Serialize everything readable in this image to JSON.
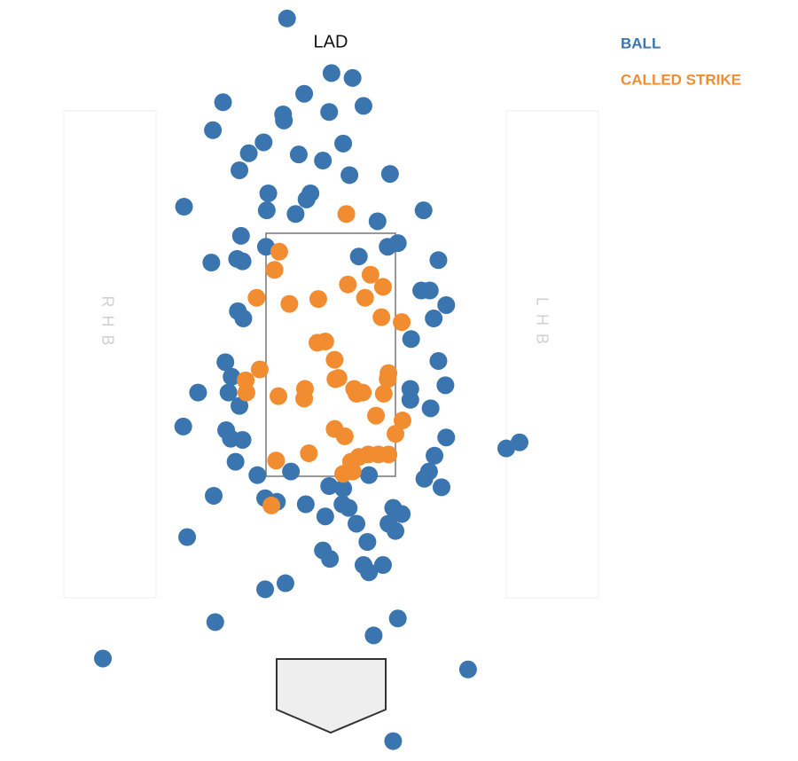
{
  "chart_data": {
    "type": "scatter",
    "title": "LAD",
    "legend": "top-right",
    "annotations": [
      "RHB",
      "LHB"
    ],
    "xlim": [
      -4,
      4
    ],
    "ylim": [
      -0.8,
      5.4
    ],
    "series": [
      {
        "name": "BALL",
        "color": "#3a75b0",
        "x": [
          -0.56,
          0.01,
          0.28,
          -0.34,
          -1.38,
          0.42,
          -0.02,
          -0.61,
          -0.6,
          -1.51,
          -0.86,
          0.16,
          -1.05,
          -0.41,
          -0.1,
          -1.17,
          0.24,
          0.76,
          -0.8,
          -0.26,
          -0.31,
          -1.88,
          -0.82,
          -0.45,
          0.6,
          1.19,
          -1.15,
          -0.83,
          0.73,
          0.86,
          -1.53,
          -1.2,
          -1.13,
          0.36,
          1.38,
          1.16,
          1.27,
          1.48,
          -1.19,
          -1.12,
          1.32,
          1.03,
          -1.35,
          1.38,
          -1.27,
          1.47,
          -1.7,
          -1.31,
          1.02,
          1.02,
          -1.17,
          1.28,
          -1.89,
          -1.34,
          -1.28,
          -1.13,
          1.48,
          2.25,
          2.42,
          -1.22,
          1.33,
          -0.94,
          -0.51,
          0.49,
          1.26,
          1.2,
          1.42,
          -0.02,
          0.16,
          -1.5,
          -0.84,
          -0.69,
          -0.32,
          0.15,
          0.23,
          0.8,
          0.91,
          -0.07,
          0.33,
          0.74,
          0.83,
          -1.84,
          0.47,
          -0.1,
          -0.01,
          0.42,
          0.67,
          0.49,
          -0.58,
          -0.84,
          -1.48,
          0.86,
          0.55,
          -2.92,
          1.76,
          0.8
        ],
        "values": [
          5.27,
          4.82,
          4.78,
          4.65,
          4.58,
          4.55,
          4.5,
          4.48,
          4.43,
          4.35,
          4.25,
          4.24,
          4.16,
          4.15,
          4.1,
          4.02,
          3.98,
          3.99,
          3.83,
          3.83,
          3.78,
          3.72,
          3.69,
          3.66,
          3.6,
          3.69,
          3.48,
          3.39,
          3.39,
          3.42,
          3.26,
          3.29,
          3.27,
          3.31,
          3.28,
          3.03,
          3.03,
          2.91,
          2.86,
          2.8,
          2.8,
          2.63,
          2.44,
          2.45,
          2.32,
          2.25,
          2.19,
          2.19,
          2.22,
          2.13,
          2.08,
          2.06,
          1.91,
          1.88,
          1.81,
          1.8,
          1.82,
          1.73,
          1.78,
          1.62,
          1.67,
          1.51,
          1.54,
          1.51,
          1.54,
          1.48,
          1.41,
          1.42,
          1.4,
          1.34,
          1.32,
          1.29,
          1.27,
          1.27,
          1.24,
          1.24,
          1.19,
          1.17,
          1.11,
          1.11,
          1.05,
          1.0,
          0.96,
          0.89,
          0.82,
          0.77,
          0.77,
          0.71,
          0.62,
          0.57,
          0.3,
          0.33,
          0.19,
          0.0,
          -0.09,
          -0.68
        ]
      },
      {
        "name": "CALLED STRIKE",
        "color": "#f28c30",
        "x": [
          0.2,
          -0.66,
          -0.72,
          0.51,
          0.22,
          0.67,
          -0.95,
          -0.16,
          0.44,
          -0.53,
          0.65,
          0.91,
          -0.17,
          -0.07,
          0.05,
          -0.91,
          0.74,
          0.06,
          0.1,
          0.73,
          -1.09,
          -0.33,
          0.3,
          -1.08,
          0.41,
          -0.67,
          -0.34,
          0.33,
          0.68,
          0.58,
          0.92,
          0.05,
          0.18,
          0.83,
          -0.28,
          -0.7,
          0.74,
          0.61,
          0.48,
          0.36,
          0.26,
          0.28,
          0.16,
          -0.76
        ],
        "values": [
          3.66,
          3.35,
          3.2,
          3.16,
          3.08,
          3.06,
          2.97,
          2.96,
          2.97,
          2.92,
          2.81,
          2.77,
          2.6,
          2.61,
          2.46,
          2.38,
          2.35,
          2.3,
          2.31,
          2.3,
          2.29,
          2.22,
          2.22,
          2.19,
          2.19,
          2.16,
          2.14,
          2.18,
          2.18,
          2.0,
          1.96,
          1.89,
          1.83,
          1.85,
          1.69,
          1.63,
          1.68,
          1.68,
          1.68,
          1.66,
          1.62,
          1.54,
          1.52,
          1.26
        ]
      }
    ]
  }
}
